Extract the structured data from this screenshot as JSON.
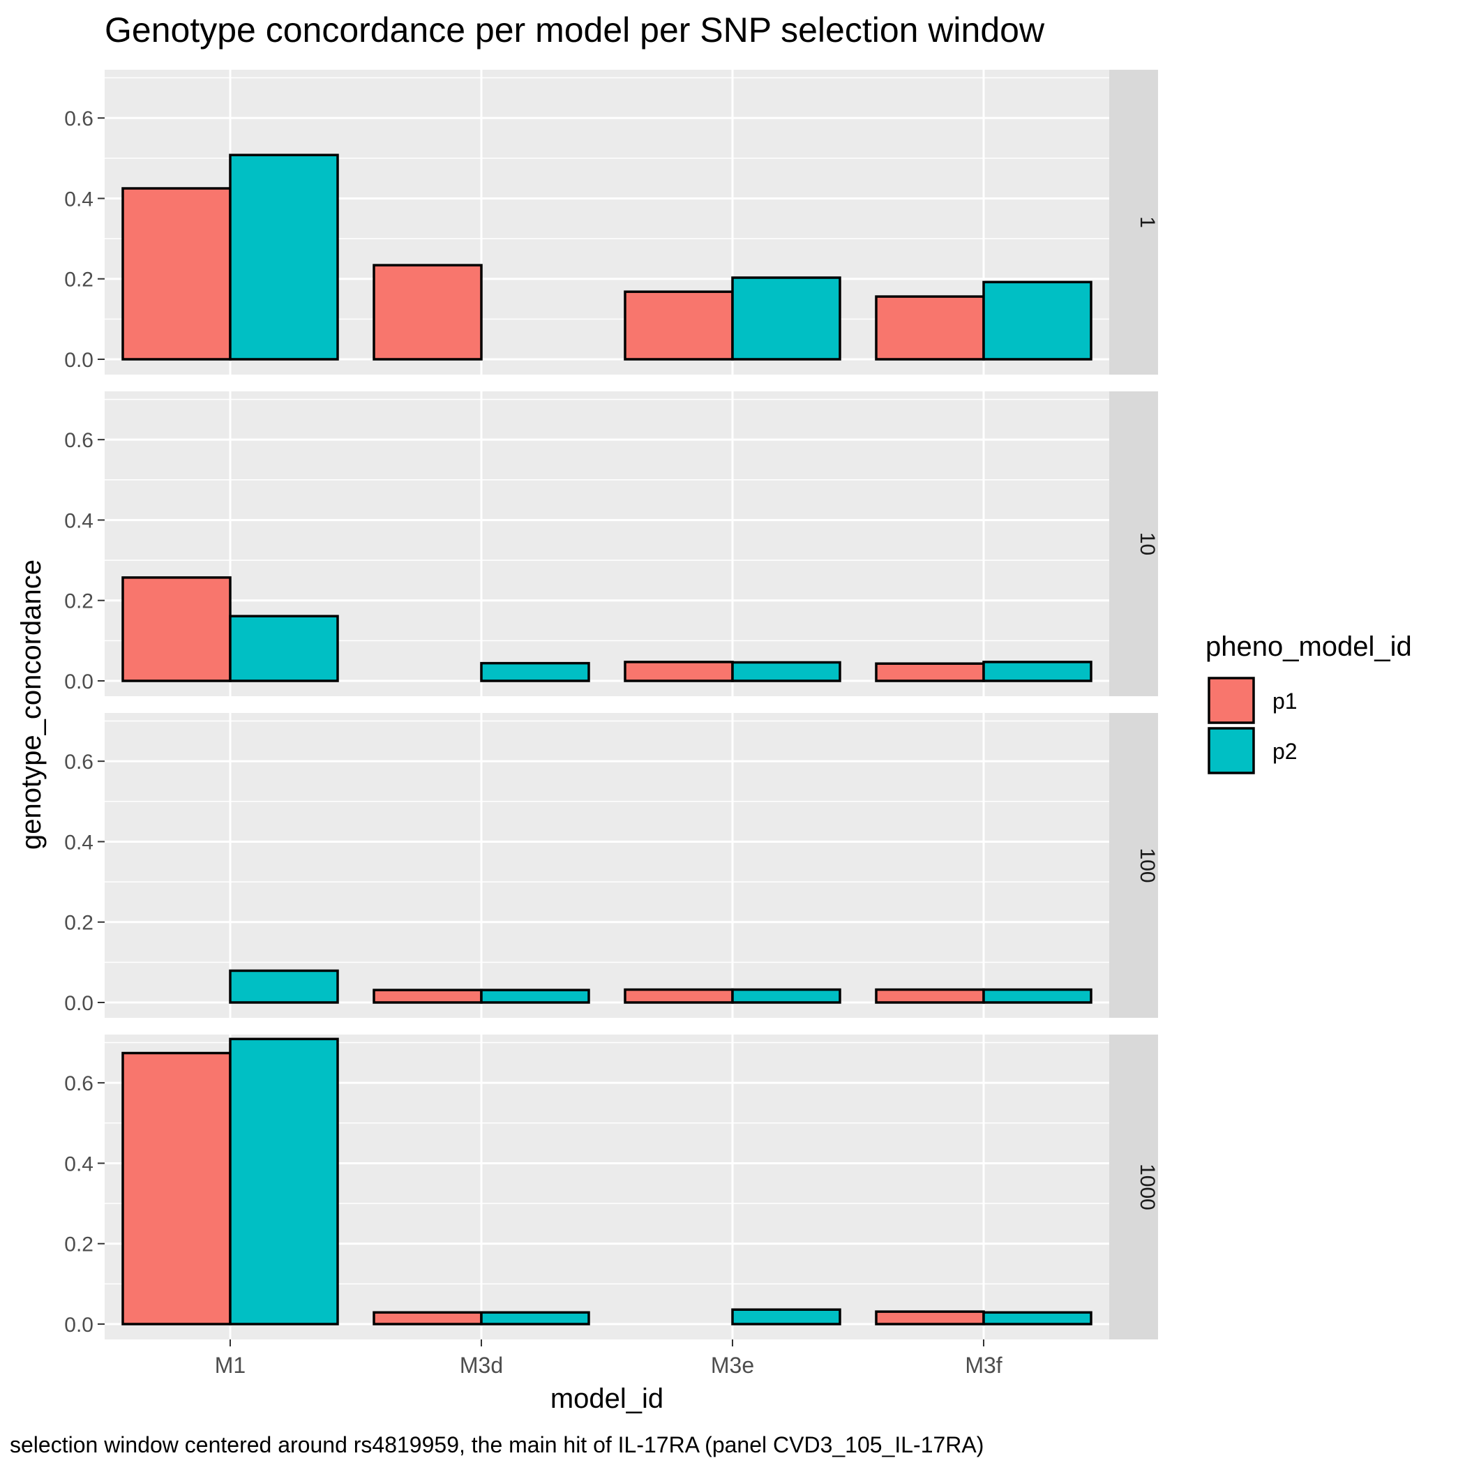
{
  "chart_data": {
    "type": "bar",
    "title": "Genotype concordance per model per SNP selection window",
    "xlabel": "model_id",
    "ylabel": "genotype_concordance",
    "caption": "selection window centered around rs4819959, the main hit of IL-17RA (panel CVD3_105_IL-17RA)",
    "categories": [
      "M1",
      "M3d",
      "M3e",
      "M3f"
    ],
    "ylim": [
      0,
      0.72
    ],
    "yticks": [
      0.0,
      0.2,
      0.4,
      0.6
    ],
    "ytick_labels": [
      "0.0",
      "0.2",
      "0.4",
      "0.6"
    ],
    "grid": true,
    "legend": {
      "title": "pheno_model_id",
      "position": "right",
      "entries": [
        {
          "name": "p1",
          "color": "#F8766D"
        },
        {
          "name": "p2",
          "color": "#00BFC4"
        }
      ]
    },
    "facets": [
      {
        "label": "1",
        "series": [
          {
            "name": "p1",
            "values": [
              0.425,
              0.234,
              0.168,
              0.156
            ]
          },
          {
            "name": "p2",
            "values": [
              0.508,
              null,
              0.203,
              0.192
            ]
          }
        ]
      },
      {
        "label": "10",
        "series": [
          {
            "name": "p1",
            "values": [
              0.257,
              null,
              0.047,
              0.043
            ]
          },
          {
            "name": "p2",
            "values": [
              0.161,
              0.044,
              0.046,
              0.047
            ]
          }
        ]
      },
      {
        "label": "100",
        "series": [
          {
            "name": "p1",
            "values": [
              null,
              0.031,
              0.032,
              0.032
            ]
          },
          {
            "name": "p2",
            "values": [
              0.079,
              0.031,
              0.032,
              0.032
            ]
          }
        ]
      },
      {
        "label": "1000",
        "series": [
          {
            "name": "p1",
            "values": [
              0.674,
              0.029,
              null,
              0.031
            ]
          },
          {
            "name": "p2",
            "values": [
              0.709,
              0.029,
              0.036,
              0.029
            ]
          }
        ]
      }
    ]
  }
}
